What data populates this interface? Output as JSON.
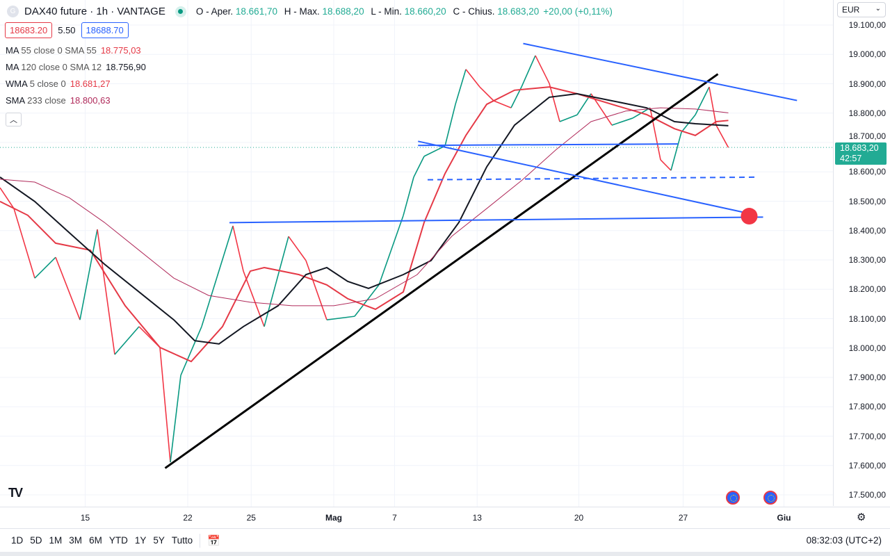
{
  "header": {
    "symbol": "DAX40 future · 1h · VANTAGE",
    "logo_letter": "G",
    "open_label": "O - Aper.",
    "open": "18.661,70",
    "high_label": "H - Max.",
    "high": "18.688,20",
    "low_label": "L - Min.",
    "low": "18.660,20",
    "close_label": "C - Chius.",
    "close": "18.683,20",
    "change": "+20,00 (+0,11%)"
  },
  "trade": {
    "sell": "18683.20",
    "spread": "5.50",
    "buy": "18688.70"
  },
  "indicators": [
    {
      "name": "MA",
      "params": "55 close 0 SMA 55",
      "value": "18.775,03",
      "color": "#e53946"
    },
    {
      "name": "MA",
      "params": "120 close 0 SMA 12",
      "value": "18.756,90",
      "color": "#131722"
    },
    {
      "name": "WMA",
      "params": "5 close 0",
      "value": "18.681,27",
      "color": "#e53946"
    },
    {
      "name": "SMA",
      "params": "233 close",
      "value": "18.800,63",
      "color": "#b02a5a"
    }
  ],
  "collapse_icon": "chevron-up",
  "currency": "EUR",
  "last_price": {
    "value": "18.683,20",
    "countdown": "42:57",
    "color": "#22ab94"
  },
  "price_axis": [
    "19.100,00",
    "19.000,00",
    "18.900,00",
    "18.800,00",
    "18.700,00",
    "18.600,00",
    "18.500,00",
    "18.400,00",
    "18.300,00",
    "18.200,00",
    "18.100,00",
    "18.000,00",
    "17.900,00",
    "17.800,00",
    "17.700,00",
    "17.600,00",
    "17.500,00"
  ],
  "time_axis": [
    {
      "label": "15",
      "bar": 98
    },
    {
      "label": "22",
      "bar": 216
    },
    {
      "label": "25",
      "bar": 289
    },
    {
      "label": "Mag",
      "bar": 384
    },
    {
      "label": "7",
      "bar": 454
    },
    {
      "label": "13",
      "bar": 549
    },
    {
      "label": "20",
      "bar": 666
    },
    {
      "label": "27",
      "bar": 786
    },
    {
      "label": "Giu",
      "bar": 902
    }
  ],
  "range_buttons": [
    "1D",
    "5D",
    "1M",
    "3M",
    "6M",
    "YTD",
    "1Y",
    "5Y",
    "Tutto"
  ],
  "clock": "08:32:03 (UTC+2)",
  "chart_data": {
    "type": "line",
    "title": "DAX40 future · 1h · VANTAGE",
    "x_unit": "hourly bar index",
    "ylim": [
      17500,
      19100
    ],
    "grid": true,
    "close": [
      [
        0,
        18546
      ],
      [
        16,
        18475
      ],
      [
        40,
        18238
      ],
      [
        64,
        18309
      ],
      [
        92,
        18096
      ],
      [
        112,
        18404
      ],
      [
        132,
        17978
      ],
      [
        160,
        18073
      ],
      [
        184,
        18002
      ],
      [
        196,
        17611
      ],
      [
        208,
        17907
      ],
      [
        232,
        18073
      ],
      [
        268,
        18416
      ],
      [
        280,
        18262
      ],
      [
        304,
        18073
      ],
      [
        332,
        18380
      ],
      [
        352,
        18298
      ],
      [
        376,
        18096
      ],
      [
        408,
        18108
      ],
      [
        436,
        18215
      ],
      [
        464,
        18451
      ],
      [
        476,
        18582
      ],
      [
        488,
        18653
      ],
      [
        512,
        18688
      ],
      [
        524,
        18830
      ],
      [
        536,
        18949
      ],
      [
        552,
        18889
      ],
      [
        568,
        18842
      ],
      [
        588,
        18818
      ],
      [
        600,
        18889
      ],
      [
        616,
        18996
      ],
      [
        632,
        18901
      ],
      [
        644,
        18771
      ],
      [
        664,
        18794
      ],
      [
        680,
        18866
      ],
      [
        704,
        18759
      ],
      [
        728,
        18783
      ],
      [
        748,
        18818
      ],
      [
        760,
        18641
      ],
      [
        772,
        18605
      ],
      [
        784,
        18735
      ],
      [
        800,
        18794
      ],
      [
        816,
        18889
      ],
      [
        824,
        18759
      ],
      [
        838,
        18683
      ]
    ],
    "series": [
      {
        "name": "MA 55",
        "color": "#e53946",
        "points": [
          [
            0,
            18499
          ],
          [
            32,
            18452
          ],
          [
            64,
            18357
          ],
          [
            104,
            18333
          ],
          [
            144,
            18144
          ],
          [
            184,
            18002
          ],
          [
            220,
            17954
          ],
          [
            256,
            18073
          ],
          [
            288,
            18262
          ],
          [
            304,
            18274
          ],
          [
            344,
            18250
          ],
          [
            376,
            18215
          ],
          [
            400,
            18168
          ],
          [
            432,
            18132
          ],
          [
            464,
            18191
          ],
          [
            488,
            18428
          ],
          [
            512,
            18594
          ],
          [
            536,
            18724
          ],
          [
            560,
            18830
          ],
          [
            592,
            18878
          ],
          [
            632,
            18889
          ],
          [
            664,
            18866
          ],
          [
            704,
            18830
          ],
          [
            744,
            18795
          ],
          [
            776,
            18747
          ],
          [
            800,
            18724
          ],
          [
            824,
            18771
          ],
          [
            838,
            18775
          ]
        ]
      },
      {
        "name": "MA 120",
        "color": "#131722",
        "points": [
          [
            0,
            18582
          ],
          [
            40,
            18499
          ],
          [
            80,
            18392
          ],
          [
            120,
            18286
          ],
          [
            160,
            18191
          ],
          [
            200,
            18096
          ],
          [
            224,
            18025
          ],
          [
            252,
            18014
          ],
          [
            280,
            18073
          ],
          [
            320,
            18144
          ],
          [
            352,
            18250
          ],
          [
            376,
            18274
          ],
          [
            400,
            18227
          ],
          [
            424,
            18203
          ],
          [
            464,
            18250
          ],
          [
            496,
            18298
          ],
          [
            528,
            18428
          ],
          [
            560,
            18617
          ],
          [
            592,
            18759
          ],
          [
            632,
            18854
          ],
          [
            664,
            18866
          ],
          [
            704,
            18842
          ],
          [
            744,
            18818
          ],
          [
            776,
            18771
          ],
          [
            800,
            18764
          ],
          [
            838,
            18757
          ]
        ]
      },
      {
        "name": "SMA 233",
        "color": "#b02a5a",
        "points": [
          [
            0,
            18575
          ],
          [
            40,
            18565
          ],
          [
            80,
            18511
          ],
          [
            120,
            18428
          ],
          [
            160,
            18333
          ],
          [
            200,
            18238
          ],
          [
            240,
            18179
          ],
          [
            288,
            18156
          ],
          [
            336,
            18144
          ],
          [
            384,
            18144
          ],
          [
            432,
            18168
          ],
          [
            480,
            18250
          ],
          [
            520,
            18381
          ],
          [
            560,
            18475
          ],
          [
            600,
            18570
          ],
          [
            640,
            18676
          ],
          [
            680,
            18771
          ],
          [
            720,
            18807
          ],
          [
            760,
            18818
          ],
          [
            800,
            18814
          ],
          [
            838,
            18801
          ]
        ]
      }
    ],
    "drawings": [
      {
        "name": "uptrend-line",
        "color": "#000000",
        "dashed": false,
        "from": [
          190,
          17591
        ],
        "to": [
          826,
          18933
        ]
      },
      {
        "name": "channel-top-line",
        "color": "#2962ff",
        "dashed": false,
        "from": [
          602,
          19037
        ],
        "to": [
          917,
          18843
        ]
      },
      {
        "name": "horizontal-resistance-line",
        "color": "#2962ff",
        "dashed": false,
        "from": [
          481,
          18690
        ],
        "to": [
          780,
          18695
        ]
      },
      {
        "name": "descending-line",
        "color": "#2962ff",
        "dashed": false,
        "from": [
          481,
          18704
        ],
        "to": [
          862,
          18458
        ]
      },
      {
        "name": "support-line",
        "color": "#2962ff",
        "dashed": false,
        "from": [
          264,
          18427
        ],
        "to": [
          878,
          18446
        ]
      },
      {
        "name": "dashed-support-line",
        "color": "#2962ff",
        "dashed": true,
        "from": [
          492,
          18573
        ],
        "to": [
          872,
          18582
        ]
      }
    ],
    "target_marker": {
      "bar": 862,
      "price": 18449,
      "color": "#f23645"
    }
  }
}
